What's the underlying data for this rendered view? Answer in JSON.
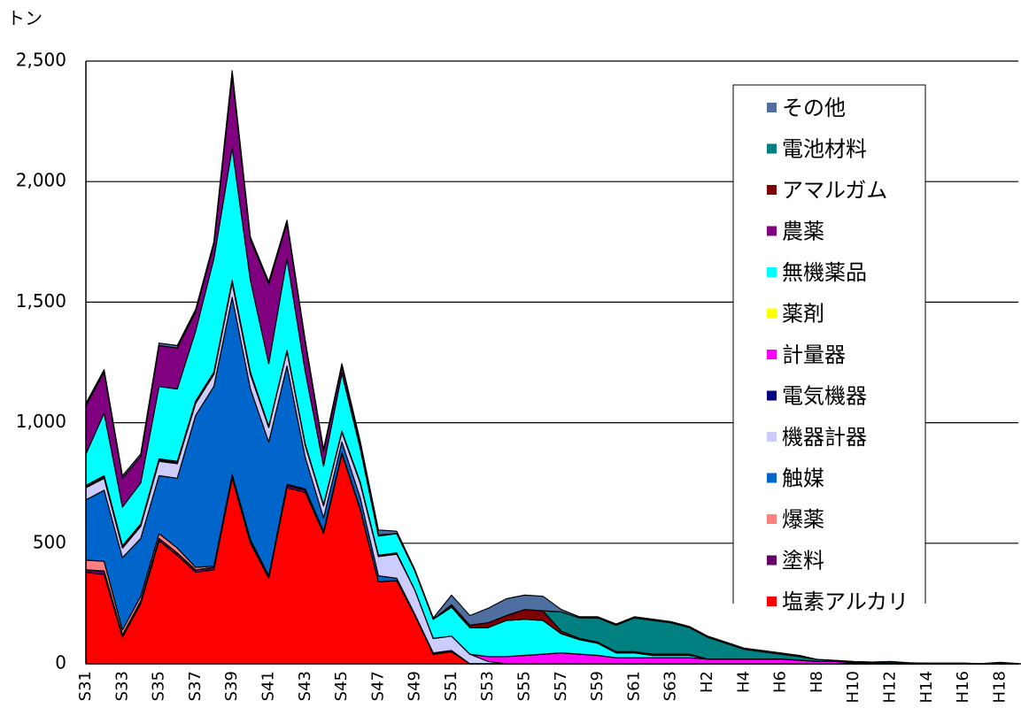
{
  "chart_data": {
    "type": "stacked-area",
    "y_label": "トン",
    "categories": [
      "S31",
      null,
      "S33",
      null,
      "S35",
      null,
      "S37",
      null,
      "S39",
      null,
      "S41",
      null,
      "S43",
      null,
      "S45",
      null,
      "S47",
      null,
      "S49",
      null,
      "S51",
      null,
      "S53",
      null,
      "S55",
      null,
      "S57",
      null,
      "S59",
      null,
      "S61",
      null,
      "S63",
      null,
      "H2",
      null,
      "H4",
      null,
      "H6",
      null,
      "H8",
      null,
      "H10",
      null,
      "H12",
      null,
      "H14",
      null,
      "H16",
      null,
      "H18",
      null
    ],
    "ylim": [
      0,
      2500
    ],
    "yticks": [
      0,
      500,
      {
        "value": 1000,
        "label": "1,000"
      },
      {
        "value": 1500,
        "label": "1,500"
      },
      {
        "value": 2000,
        "label": "2,000"
      },
      {
        "value": 2500,
        "label": "2,500"
      }
    ],
    "grid": true,
    "legend": "right",
    "series": [
      {
        "name": "塩素アルカリ",
        "color": "#ff0000",
        "values": [
          380,
          370,
          110,
          250,
          510,
          450,
          380,
          390,
          770,
          500,
          355,
          730,
          710,
          540,
          870,
          640,
          340,
          345,
          200,
          40,
          50,
          0,
          0,
          0,
          0,
          0,
          0,
          0,
          0,
          0,
          0,
          0,
          0,
          0,
          0,
          0,
          0,
          0,
          0,
          0,
          0,
          0,
          0,
          0,
          0,
          0,
          0,
          0,
          0,
          0,
          0,
          0
        ]
      },
      {
        "name": "塗料",
        "color": "#660066",
        "values": [
          10,
          15,
          10,
          10,
          10,
          10,
          10,
          10,
          10,
          10,
          5,
          10,
          10,
          5,
          5,
          5,
          0,
          0,
          0,
          0,
          0,
          0,
          0,
          0,
          0,
          0,
          0,
          0,
          0,
          0,
          0,
          0,
          0,
          0,
          0,
          0,
          0,
          0,
          0,
          0,
          0,
          0,
          0,
          0,
          0,
          0,
          0,
          0,
          0,
          0,
          0,
          0
        ]
      },
      {
        "name": "爆薬",
        "color": "#ff8080",
        "values": [
          40,
          40,
          20,
          20,
          20,
          20,
          10,
          5,
          5,
          5,
          5,
          5,
          5,
          5,
          0,
          0,
          0,
          0,
          0,
          0,
          0,
          0,
          0,
          0,
          0,
          0,
          0,
          0,
          0,
          0,
          0,
          0,
          0,
          0,
          0,
          0,
          0,
          0,
          0,
          0,
          0,
          0,
          0,
          0,
          0,
          0,
          0,
          0,
          0,
          0,
          0,
          0
        ]
      },
      {
        "name": "触媒",
        "color": "#0066cc",
        "values": [
          250,
          295,
          300,
          240,
          240,
          290,
          630,
          745,
          735,
          625,
          555,
          490,
          130,
          55,
          45,
          45,
          25,
          10,
          5,
          5,
          5,
          0,
          0,
          0,
          0,
          0,
          0,
          0,
          0,
          0,
          0,
          0,
          0,
          0,
          0,
          0,
          0,
          0,
          0,
          0,
          0,
          0,
          0,
          0,
          0,
          0,
          0,
          0,
          0,
          0,
          0,
          0
        ]
      },
      {
        "name": "機器計器",
        "color": "#ccccff",
        "values": [
          50,
          50,
          40,
          50,
          60,
          60,
          50,
          50,
          60,
          60,
          60,
          60,
          50,
          50,
          40,
          60,
          80,
          100,
          100,
          60,
          60,
          40,
          10,
          0,
          0,
          0,
          0,
          0,
          0,
          0,
          0,
          0,
          0,
          0,
          0,
          0,
          0,
          0,
          0,
          0,
          0,
          0,
          0,
          0,
          0,
          0,
          0,
          0,
          0,
          0,
          0,
          0
        ]
      },
      {
        "name": "電気機器",
        "color": "#000080",
        "values": [
          5,
          5,
          5,
          5,
          5,
          5,
          5,
          5,
          5,
          5,
          5,
          5,
          5,
          5,
          5,
          5,
          5,
          5,
          0,
          0,
          0,
          0,
          0,
          0,
          0,
          0,
          0,
          0,
          0,
          0,
          0,
          0,
          0,
          0,
          0,
          0,
          0,
          0,
          0,
          0,
          0,
          0,
          0,
          0,
          0,
          0,
          0,
          0,
          0,
          0,
          0,
          0
        ]
      },
      {
        "name": "計量器",
        "color": "#ff00ff",
        "values": [
          0,
          0,
          0,
          0,
          0,
          0,
          0,
          0,
          0,
          0,
          0,
          0,
          0,
          0,
          0,
          0,
          0,
          0,
          0,
          0,
          0,
          0,
          20,
          30,
          35,
          40,
          45,
          40,
          35,
          25,
          25,
          25,
          25,
          25,
          20,
          20,
          20,
          20,
          20,
          15,
          10,
          10,
          5,
          3,
          3,
          2,
          2,
          2,
          2,
          1,
          1,
          1
        ]
      },
      {
        "name": "薬剤",
        "color": "#ffff00",
        "values": [
          5,
          5,
          5,
          5,
          5,
          5,
          5,
          5,
          5,
          5,
          0,
          0,
          0,
          0,
          0,
          0,
          0,
          0,
          0,
          0,
          0,
          0,
          0,
          0,
          0,
          0,
          0,
          0,
          0,
          0,
          0,
          0,
          0,
          0,
          0,
          0,
          0,
          0,
          0,
          0,
          0,
          0,
          0,
          0,
          0,
          0,
          0,
          0,
          0,
          0,
          0,
          0
        ]
      },
      {
        "name": "無機薬品",
        "color": "#00ffff",
        "values": [
          130,
          260,
          160,
          170,
          300,
          300,
          290,
          470,
          550,
          380,
          260,
          380,
          300,
          160,
          240,
          140,
          80,
          80,
          80,
          80,
          120,
          110,
          120,
          150,
          150,
          140,
          80,
          60,
          50,
          20,
          20,
          10,
          10,
          10,
          0,
          0,
          0,
          0,
          0,
          0,
          0,
          0,
          0,
          0,
          0,
          0,
          0,
          0,
          0,
          0,
          0,
          0
        ]
      },
      {
        "name": "農薬",
        "color": "#800080",
        "values": [
          200,
          170,
          120,
          110,
          170,
          170,
          80,
          60,
          300,
          170,
          330,
          150,
          120,
          60,
          30,
          20,
          5,
          0,
          0,
          0,
          0,
          0,
          0,
          0,
          0,
          0,
          0,
          0,
          0,
          0,
          0,
          0,
          0,
          0,
          0,
          0,
          0,
          0,
          0,
          0,
          0,
          0,
          0,
          0,
          0,
          0,
          0,
          0,
          0,
          0,
          0,
          0
        ]
      },
      {
        "name": "アマルガム",
        "color": "#800000",
        "values": [
          0,
          0,
          0,
          0,
          0,
          0,
          0,
          0,
          0,
          0,
          0,
          0,
          0,
          0,
          0,
          0,
          0,
          0,
          0,
          0,
          10,
          10,
          20,
          20,
          40,
          40,
          10,
          5,
          5,
          5,
          5,
          5,
          5,
          5,
          0,
          0,
          0,
          0,
          0,
          0,
          0,
          0,
          0,
          0,
          0,
          0,
          0,
          0,
          0,
          0,
          0,
          0
        ]
      },
      {
        "name": "電池材料",
        "color": "#008080",
        "values": [
          0,
          0,
          0,
          0,
          0,
          0,
          0,
          0,
          0,
          0,
          0,
          0,
          0,
          0,
          0,
          0,
          0,
          0,
          0,
          0,
          0,
          0,
          0,
          0,
          0,
          0,
          80,
          85,
          100,
          110,
          140,
          140,
          130,
          110,
          90,
          65,
          40,
          30,
          20,
          15,
          8,
          4,
          4,
          4,
          6,
          2,
          0,
          0,
          0,
          0,
          0,
          0
        ]
      },
      {
        "name": "その他",
        "color": "#4f6fa0",
        "values": [
          10,
          10,
          10,
          10,
          10,
          10,
          10,
          10,
          20,
          10,
          10,
          10,
          10,
          10,
          10,
          10,
          20,
          10,
          5,
          5,
          40,
          40,
          60,
          70,
          60,
          60,
          10,
          5,
          5,
          5,
          5,
          5,
          5,
          5,
          5,
          5,
          5,
          5,
          5,
          5,
          0,
          0,
          0,
          0,
          0,
          0,
          0,
          0,
          0,
          0,
          5,
          0
        ]
      }
    ]
  }
}
